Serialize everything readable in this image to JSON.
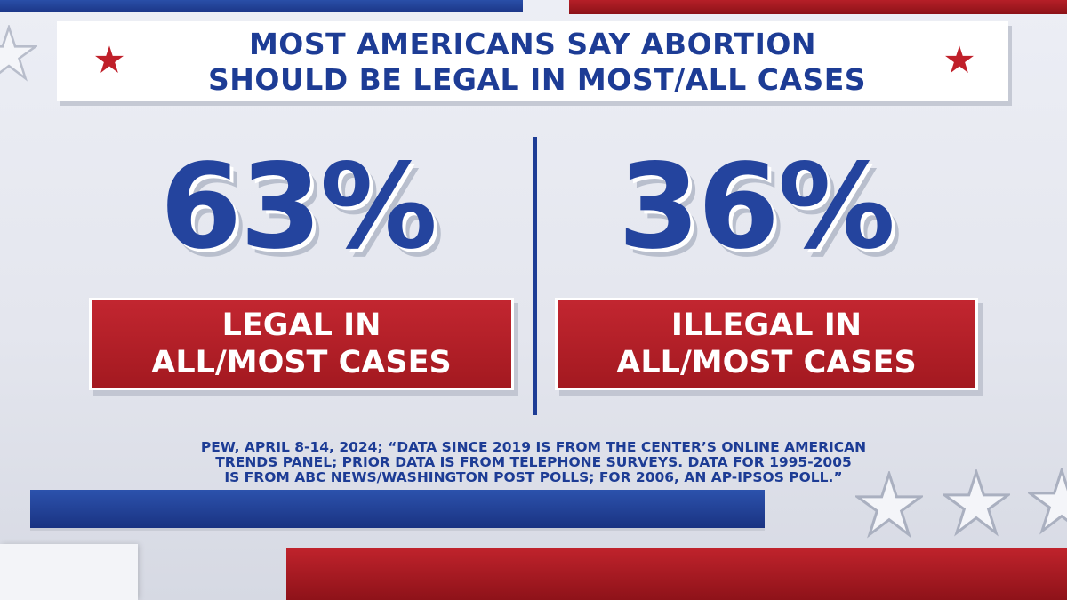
{
  "title": {
    "line1": "MOST AMERICANS SAY ABORTION",
    "line2": "SHOULD BE LEGAL IN MOST/ALL CASES"
  },
  "stats": [
    {
      "value": "63%",
      "label_line1": "LEGAL IN",
      "label_line2": "ALL/MOST CASES"
    },
    {
      "value": "36%",
      "label_line1": "ILLEGAL IN",
      "label_line2": "ALL/MOST CASES"
    }
  ],
  "source": {
    "line1": "PEW, APRIL 8-14, 2024; “DATA SINCE 2019 IS FROM THE CENTER’S ONLINE AMERICAN",
    "line2": "TRENDS PANEL; PRIOR DATA IS FROM TELEPHONE SURVEYS. DATA FOR 1995-2005",
    "line3": "IS FROM ABC NEWS/WASHINGTON POST POLLS; FOR 2006, AN AP-IPSOS POLL.”"
  },
  "colors": {
    "navy": "#1d3c95",
    "red": "#b51f28",
    "background": "#e6e8ef"
  }
}
